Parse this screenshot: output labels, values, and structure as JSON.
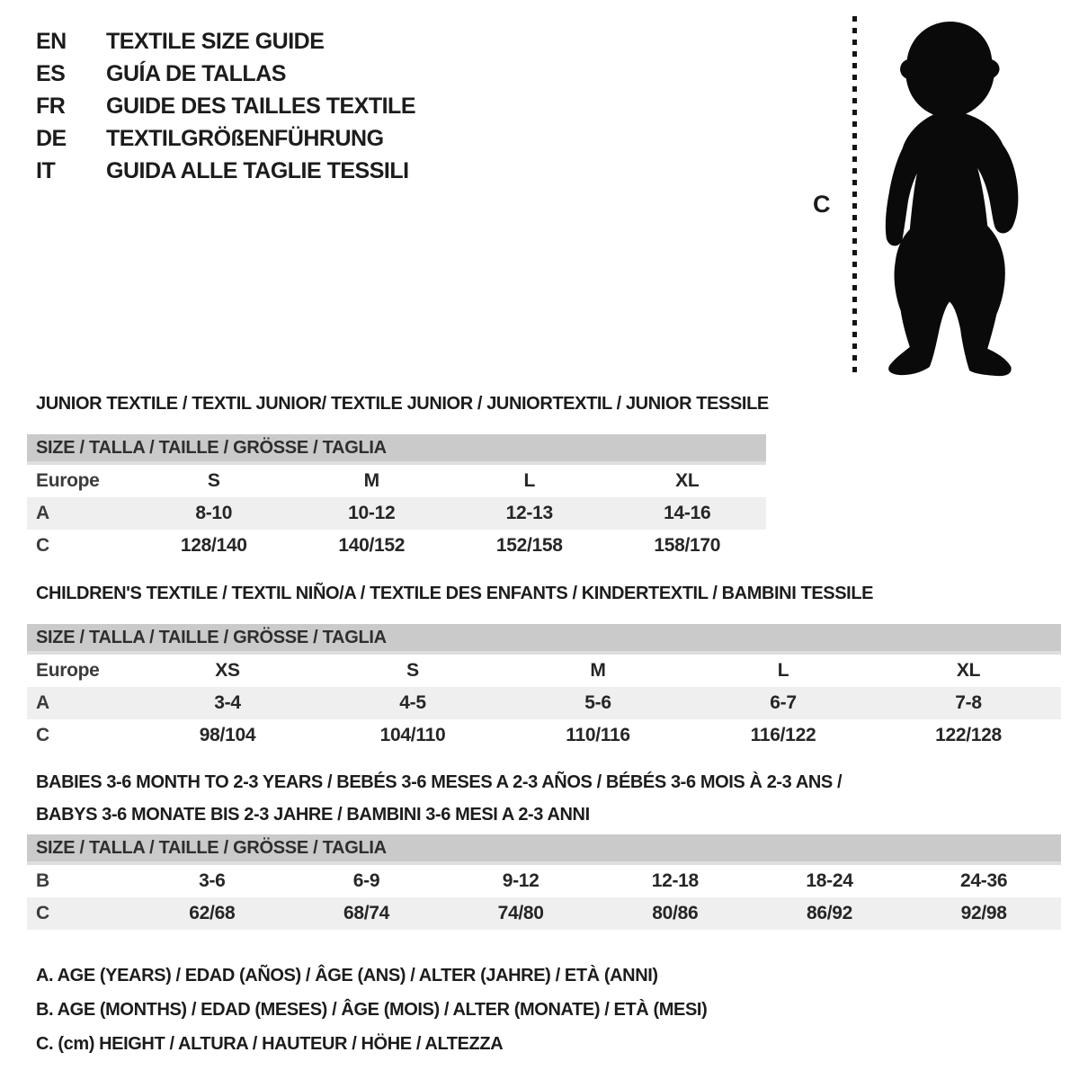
{
  "languages": [
    {
      "code": "EN",
      "title": "TEXTILE SIZE GUIDE"
    },
    {
      "code": "ES",
      "title": "GUÍA DE TALLAS"
    },
    {
      "code": "FR",
      "title": "GUIDE DES TAILLES TEXTILE"
    },
    {
      "code": "DE",
      "title": "TEXTILGRÖßENFÜHRUNG"
    },
    {
      "code": "IT",
      "title": "GUIDA ALLE TAGLIE TESSILI"
    }
  ],
  "figure": {
    "measure_label": "C",
    "image": "toddler-silhouette"
  },
  "tables": [
    {
      "id": "junior",
      "title_lines": [
        "JUNIOR TEXTILE / TEXTIL JUNIOR/ TEXTILE JUNIOR / JUNIORTEXTIL / JUNIOR TESSILE"
      ],
      "size_header": "SIZE / TALLA / TAILLE / GRÖSSE / TAGLIA",
      "rows": [
        {
          "label": "Europe",
          "values": [
            "S",
            "M",
            "L",
            "XL"
          ]
        },
        {
          "label": "A",
          "values": [
            "8-10",
            "10-12",
            "12-13",
            "14-16"
          ]
        },
        {
          "label": "C",
          "values": [
            "128/140",
            "140/152",
            "152/158",
            "158/170"
          ]
        }
      ]
    },
    {
      "id": "children",
      "title_lines": [
        "CHILDREN'S TEXTILE / TEXTIL NIÑO/A / TEXTILE DES ENFANTS / KINDERTEXTIL / BAMBINI TESSILE"
      ],
      "size_header": "SIZE / TALLA / TAILLE / GRÖSSE / TAGLIA",
      "rows": [
        {
          "label": "Europe",
          "values": [
            "XS",
            "S",
            "M",
            "L",
            "XL"
          ]
        },
        {
          "label": "A",
          "values": [
            "3-4",
            "4-5",
            "5-6",
            "6-7",
            "7-8"
          ]
        },
        {
          "label": "C",
          "values": [
            "98/104",
            "104/110",
            "110/116",
            "116/122",
            "122/128"
          ]
        }
      ]
    },
    {
      "id": "babies",
      "title_lines": [
        "BABIES 3-6 MONTH TO 2-3 YEARS / BEBÉS 3-6 MESES A 2-3 AÑOS / BÉBÉS 3-6 MOIS À 2-3 ANS /",
        "BABYS 3-6 MONATE BIS 2-3 JAHRE / BAMBINI 3-6 MESI A 2-3 ANNI"
      ],
      "size_header": "SIZE / TALLA / TAILLE / GRÖSSE / TAGLIA",
      "rows": [
        {
          "label": "B",
          "values": [
            "3-6",
            "6-9",
            "9-12",
            "12-18",
            "18-24",
            "24-36"
          ]
        },
        {
          "label": "C",
          "values": [
            "62/68",
            "68/74",
            "74/80",
            "80/86",
            "86/92",
            "92/98"
          ]
        }
      ]
    }
  ],
  "legend": [
    "A. AGE (YEARS) / EDAD (AÑOS) / ÂGE (ANS) / ALTER (JAHRE) / ETÀ (ANNI)",
    "B. AGE (MONTHS) / EDAD (MESES) / ÂGE (MOIS) / ALTER (MONATE) / ETÀ (MESI)",
    "C. (cm) HEIGHT / ALTURA / HAUTEUR / HÖHE / ALTEZZA"
  ],
  "colors": {
    "table_header_bg": "#cacaca",
    "row_alt_bg": "#efefef",
    "text": "#1c1c1c",
    "silhouette": "#0a0a0a"
  }
}
